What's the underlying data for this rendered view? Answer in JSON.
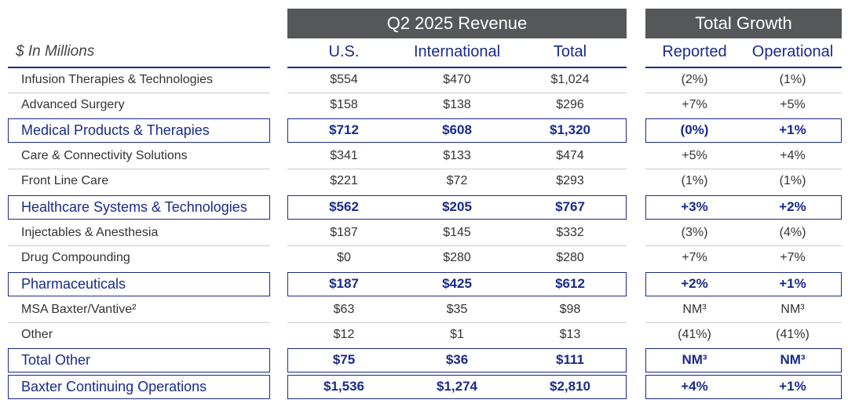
{
  "header": {
    "revenue_title": "Q2 2025 Revenue",
    "growth_title": "Total Growth",
    "units": "$ In Millions",
    "columns": [
      "U.S.",
      "International",
      "Total",
      "Reported",
      "Operational"
    ]
  },
  "rows": [
    {
      "label": "Infusion Therapies & Technologies",
      "us": "$554",
      "intl": "$470",
      "total": "$1,024",
      "reported": "(2%)",
      "operational": "(1%)",
      "subtotal": false
    },
    {
      "label": "Advanced Surgery",
      "us": "$158",
      "intl": "$138",
      "total": "$296",
      "reported": "+7%",
      "operational": "+5%",
      "subtotal": false
    },
    {
      "label": "Medical Products & Therapies",
      "us": "$712",
      "intl": "$608",
      "total": "$1,320",
      "reported": "(0%)",
      "operational": "+1%",
      "subtotal": true
    },
    {
      "label": "Care & Connectivity Solutions",
      "us": "$341",
      "intl": "$133",
      "total": "$474",
      "reported": "+5%",
      "operational": "+4%",
      "subtotal": false
    },
    {
      "label": "Front Line Care",
      "us": "$221",
      "intl": "$72",
      "total": "$293",
      "reported": "(1%)",
      "operational": "(1%)",
      "subtotal": false
    },
    {
      "label": "Healthcare Systems & Technologies",
      "us": "$562",
      "intl": "$205",
      "total": "$767",
      "reported": "+3%",
      "operational": "+2%",
      "subtotal": true
    },
    {
      "label": "Injectables & Anesthesia",
      "us": "$187",
      "intl": "$145",
      "total": "$332",
      "reported": "(3%)",
      "operational": "(4%)",
      "subtotal": false
    },
    {
      "label": "Drug Compounding",
      "us": "$0",
      "intl": "$280",
      "total": "$280",
      "reported": "+7%",
      "operational": "+7%",
      "subtotal": false
    },
    {
      "label": "Pharmaceuticals",
      "us": "$187",
      "intl": "$425",
      "total": "$612",
      "reported": "+2%",
      "operational": "+1%",
      "subtotal": true
    },
    {
      "label": "MSA Baxter/Vantive²",
      "us": "$63",
      "intl": "$35",
      "total": "$98",
      "reported": "NM³",
      "operational": "NM³",
      "subtotal": false
    },
    {
      "label": "Other",
      "us": "$12",
      "intl": "$1",
      "total": "$13",
      "reported": "(41%)",
      "operational": "(41%)",
      "subtotal": false
    },
    {
      "label": "Total Other",
      "us": "$75",
      "intl": "$36",
      "total": "$111",
      "reported": "NM³",
      "operational": "NM³",
      "subtotal": true
    },
    {
      "label": "Baxter Continuing Operations",
      "us": "$1,536",
      "intl": "$1,274",
      "total": "$2,810",
      "reported": "+4%",
      "operational": "+1%",
      "subtotal": true
    }
  ]
}
